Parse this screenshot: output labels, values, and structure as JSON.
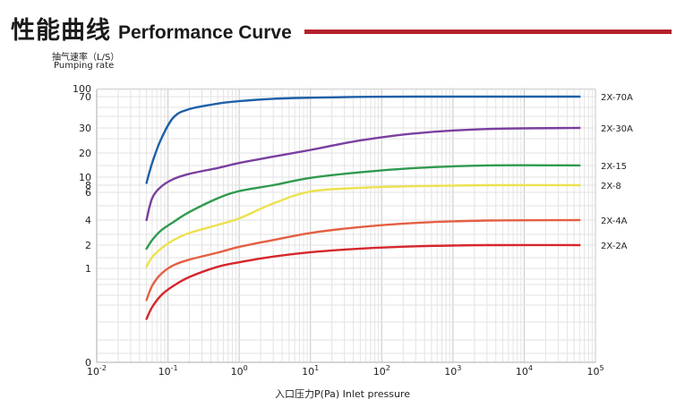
{
  "header": {
    "title_zh": "性能曲线",
    "title_en": "Performance Curve",
    "accent_color": "#b5202a"
  },
  "chart_data": {
    "type": "line",
    "ylabel_zh": "抽气速率（L/S）",
    "ylabel_en": "Pumping rate",
    "xlabel": "入口压力P(Pa) Inlet pressure",
    "x_scale": "log",
    "y_scale": "nonlinear",
    "grid": true,
    "legend": "right-end-labels",
    "x_ticks": [
      {
        "v": 0.01,
        "base": "10",
        "exp": "-2"
      },
      {
        "v": 0.1,
        "base": "10",
        "exp": "-1"
      },
      {
        "v": 1,
        "base": "10",
        "exp": "0"
      },
      {
        "v": 10,
        "base": "10",
        "exp": "1"
      },
      {
        "v": 100,
        "base": "10",
        "exp": "2"
      },
      {
        "v": 1000,
        "base": "10",
        "exp": "3"
      },
      {
        "v": 10000,
        "base": "10",
        "exp": "4"
      },
      {
        "v": 100000,
        "base": "10",
        "exp": "5"
      }
    ],
    "y_ticks": [
      "0",
      "1",
      "2",
      "4",
      "6",
      "8",
      "10",
      "20",
      "30",
      "70",
      "100"
    ],
    "xlim": [
      0.01,
      100000
    ],
    "series": [
      {
        "name": "2X-70A",
        "color": "#1f5fa8",
        "x": [
          0.05,
          0.06,
          0.08,
          0.12,
          0.2,
          0.5,
          1,
          3,
          10,
          50,
          300,
          3000,
          60000
        ],
        "y": [
          8.5,
          15,
          25,
          40,
          50,
          58,
          62,
          66,
          68,
          69.5,
          70,
          70,
          70
        ]
      },
      {
        "name": "2X-30A",
        "color": "#7a3fa0",
        "x": [
          0.05,
          0.06,
          0.08,
          0.12,
          0.2,
          0.5,
          1,
          3,
          10,
          50,
          300,
          3000,
          60000
        ],
        "y": [
          4,
          5.5,
          7.5,
          9.5,
          11,
          13,
          15,
          18,
          21,
          24.5,
          27.5,
          29.5,
          30
        ]
      },
      {
        "name": "2X-15",
        "color": "#2e9a4e",
        "x": [
          0.05,
          0.06,
          0.08,
          0.12,
          0.2,
          0.5,
          1,
          3,
          10,
          50,
          300,
          3000,
          60000
        ],
        "y": [
          1.8,
          2.3,
          3,
          3.8,
          4.5,
          5.5,
          6.3,
          8,
          9.8,
          11.5,
          13,
          14,
          14
        ]
      },
      {
        "name": "2X-8",
        "color": "#ece14f",
        "x": [
          0.05,
          0.06,
          0.08,
          0.12,
          0.2,
          0.5,
          1,
          3,
          10,
          50,
          300,
          3000,
          60000
        ],
        "y": [
          1.05,
          1.4,
          1.8,
          2.3,
          2.8,
          3.5,
          4.1,
          5.1,
          6.2,
          7.2,
          7.7,
          8,
          8
        ]
      },
      {
        "name": "2X-4A",
        "color": "#e45f42",
        "x": [
          0.05,
          0.06,
          0.08,
          0.12,
          0.2,
          0.5,
          1,
          3,
          10,
          50,
          300,
          3000,
          60000
        ],
        "y": [
          0.55,
          0.72,
          0.9,
          1.1,
          1.3,
          1.6,
          1.9,
          2.3,
          2.8,
          3.3,
          3.7,
          3.95,
          4
        ]
      },
      {
        "name": "2X-2A",
        "color": "#d6262c",
        "x": [
          0.05,
          0.06,
          0.08,
          0.12,
          0.2,
          0.5,
          1,
          3,
          10,
          50,
          300,
          3000,
          60000
        ],
        "y": [
          0.38,
          0.48,
          0.6,
          0.72,
          0.85,
          1.05,
          1.2,
          1.42,
          1.62,
          1.8,
          1.93,
          2,
          2
        ]
      }
    ]
  }
}
